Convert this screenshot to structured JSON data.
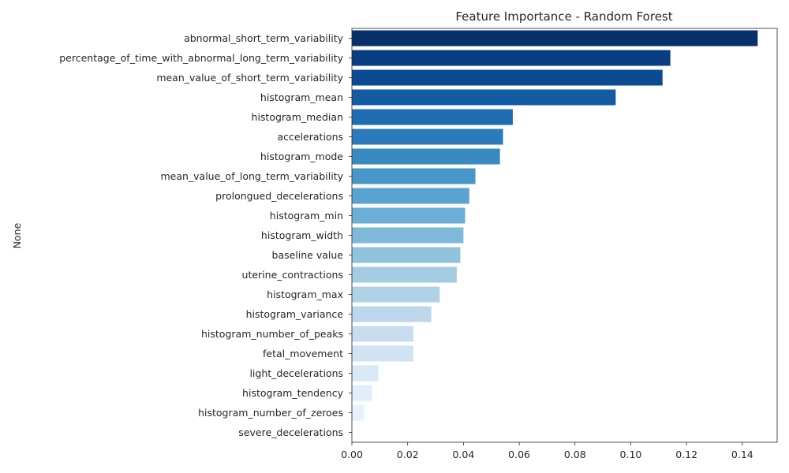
{
  "chart_data": {
    "type": "bar",
    "orientation": "horizontal",
    "title": "Feature Importance - Random Forest",
    "xlabel": "",
    "ylabel": "None",
    "xlim": [
      0,
      0.1525
    ],
    "xticks": [
      "0.00",
      "0.02",
      "0.04",
      "0.06",
      "0.08",
      "0.10",
      "0.12",
      "0.14"
    ],
    "xtick_values": [
      0,
      0.02,
      0.04,
      0.06,
      0.08,
      0.1,
      0.12,
      0.14
    ],
    "grid": false,
    "palette": "Blues_r",
    "categories": [
      "abnormal_short_term_variability",
      "percentage_of_time_with_abnormal_long_term_variability",
      "mean_value_of_short_term_variability",
      "histogram_mean",
      "histogram_median",
      "accelerations",
      "histogram_mode",
      "mean_value_of_long_term_variability",
      "prolongued_decelerations",
      "histogram_min",
      "histogram_width",
      "baseline value",
      "uterine_contractions",
      "histogram_max",
      "histogram_variance",
      "histogram_number_of_peaks",
      "fetal_movement",
      "light_decelerations",
      "histogram_tendency",
      "histogram_number_of_zeroes",
      "severe_decelerations"
    ],
    "values": [
      0.1455,
      0.1142,
      0.1114,
      0.0946,
      0.0577,
      0.0542,
      0.0531,
      0.0443,
      0.0421,
      0.0406,
      0.04,
      0.0389,
      0.0376,
      0.0315,
      0.0285,
      0.022,
      0.022,
      0.0095,
      0.0072,
      0.0044,
      0.0001
    ],
    "colors": [
      "#08306b",
      "#083e81",
      "#0a4b92",
      "#135ca3",
      "#1f6db1",
      "#2b7bba",
      "#3a8ac2",
      "#4997c9",
      "#5aa2cf",
      "#6caed6",
      "#7fb9da",
      "#91c3de",
      "#a3cce3",
      "#b0d2e7",
      "#bdd7ec",
      "#c8ddf0",
      "#d1e3f3",
      "#d9e8f5",
      "#e1edf8",
      "#e9f2fa",
      "#f1f7fd"
    ]
  }
}
